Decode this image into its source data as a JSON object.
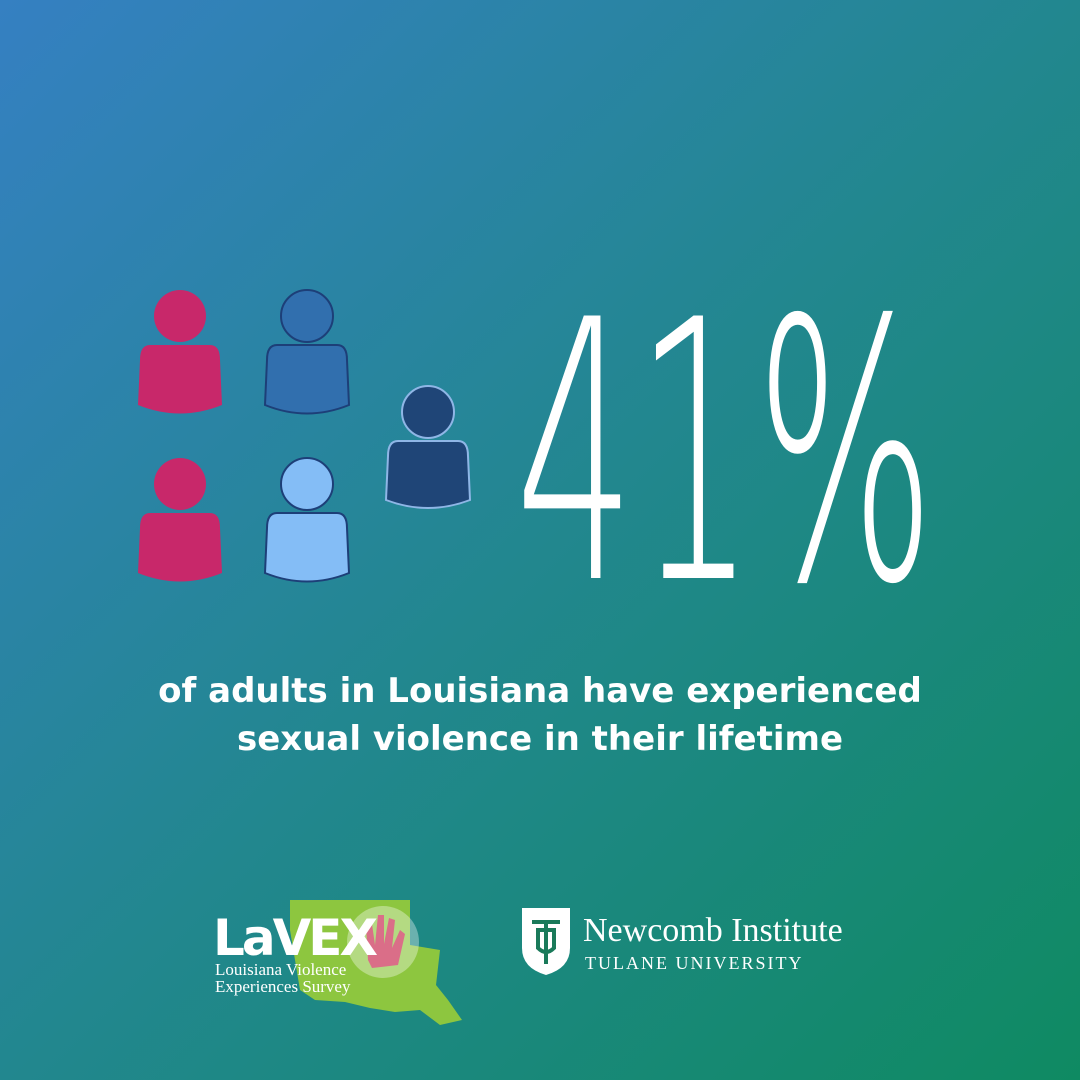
{
  "stat": "41%",
  "caption": [
    "of adults in Louisiana have experienced",
    "sexual violence in their lifetime"
  ],
  "logos": {
    "lavex": {
      "name": "LaVEX",
      "subtitle": [
        "Louisiana Violence",
        "Experiences Survey"
      ]
    },
    "newcomb": {
      "name": "Newcomb Institute",
      "subtitle": "TULANE UNIVERSITY"
    }
  }
}
